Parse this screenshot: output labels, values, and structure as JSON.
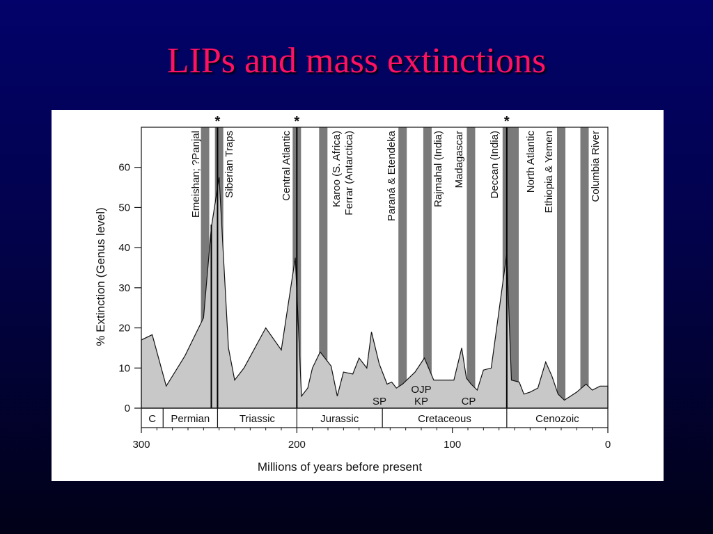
{
  "slide": {
    "title": "LIPs and mass extinctions"
  },
  "chart_data": {
    "type": "area",
    "xlabel": "Millions of years before present",
    "ylabel": "% Extinction (Genus level)",
    "xlim": [
      300,
      0
    ],
    "ylim": [
      0,
      70
    ],
    "x_ticks": [
      300,
      200,
      100,
      0
    ],
    "y_ticks": [
      0,
      10,
      20,
      30,
      40,
      50,
      60
    ],
    "series": [
      {
        "x": [
          300,
          293,
          284,
          272,
          260,
          255,
          250,
          244,
          240,
          234,
          220,
          210,
          201,
          197,
          193,
          190,
          185,
          181,
          178,
          174,
          170,
          164,
          160,
          155,
          152,
          147,
          142,
          139,
          136,
          132,
          124,
          118,
          112,
          106,
          99,
          94,
          91,
          88,
          84,
          80,
          75,
          65,
          62,
          57,
          54,
          50,
          45,
          40,
          36,
          32,
          28,
          24,
          20,
          14,
          10,
          5,
          0
        ],
        "y": [
          17,
          18.3,
          5.5,
          13,
          22.5,
          45,
          57.5,
          15,
          7,
          10,
          20,
          14.5,
          37.5,
          3,
          5,
          10,
          14,
          12,
          10.5,
          3,
          9,
          8.5,
          12.5,
          10,
          19,
          11,
          6,
          6.5,
          5,
          6,
          9,
          12.5,
          7,
          7,
          7,
          15,
          7.5,
          6,
          4.5,
          9.5,
          10,
          38.5,
          7,
          6.5,
          3.5,
          4,
          5,
          11.5,
          8,
          3.5,
          2,
          3,
          4,
          6,
          4.5,
          5.5,
          5.5
        ]
      }
    ],
    "eras": [
      "C",
      "Permian",
      "Triassic",
      "Jurassic",
      "Cretaceous",
      "Cenozoic"
    ],
    "era_boundaries": [
      300,
      286,
      251,
      200,
      145,
      65,
      0
    ],
    "lip_events": [
      {
        "label": "Emeishan; ?Panjal",
        "age": 259
      },
      {
        "label": "Siberian Traps",
        "age": 250
      },
      {
        "label": "Central Atlantic",
        "age": 200
      },
      {
        "label": "Karoo (S. Africa)",
        "age": 183
      },
      {
        "label": "Ferrar (Antarctica)",
        "age": 183
      },
      {
        "label": "Paraná & Etendeka",
        "age": 132
      },
      {
        "label": "Rajmahal (India)",
        "age": 116
      },
      {
        "label": "Madagascar",
        "age": 88
      },
      {
        "label": "Deccan (India)",
        "age": 65
      },
      {
        "label": "North Atlantic",
        "age": 60
      },
      {
        "label": "Ethiopia & Yemen",
        "age": 30
      },
      {
        "label": "Columbia River",
        "age": 15
      }
    ],
    "mass_extinction_markers": [
      {
        "label": "*",
        "age": 251
      },
      {
        "label": "*",
        "age": 200
      },
      {
        "label": "*",
        "age": 65
      }
    ],
    "annotations": [
      {
        "label": "SP",
        "age": 147
      },
      {
        "label": "OJP",
        "age": 120
      },
      {
        "label": "KP",
        "age": 120
      },
      {
        "label": "CP",
        "age": 90
      }
    ]
  }
}
